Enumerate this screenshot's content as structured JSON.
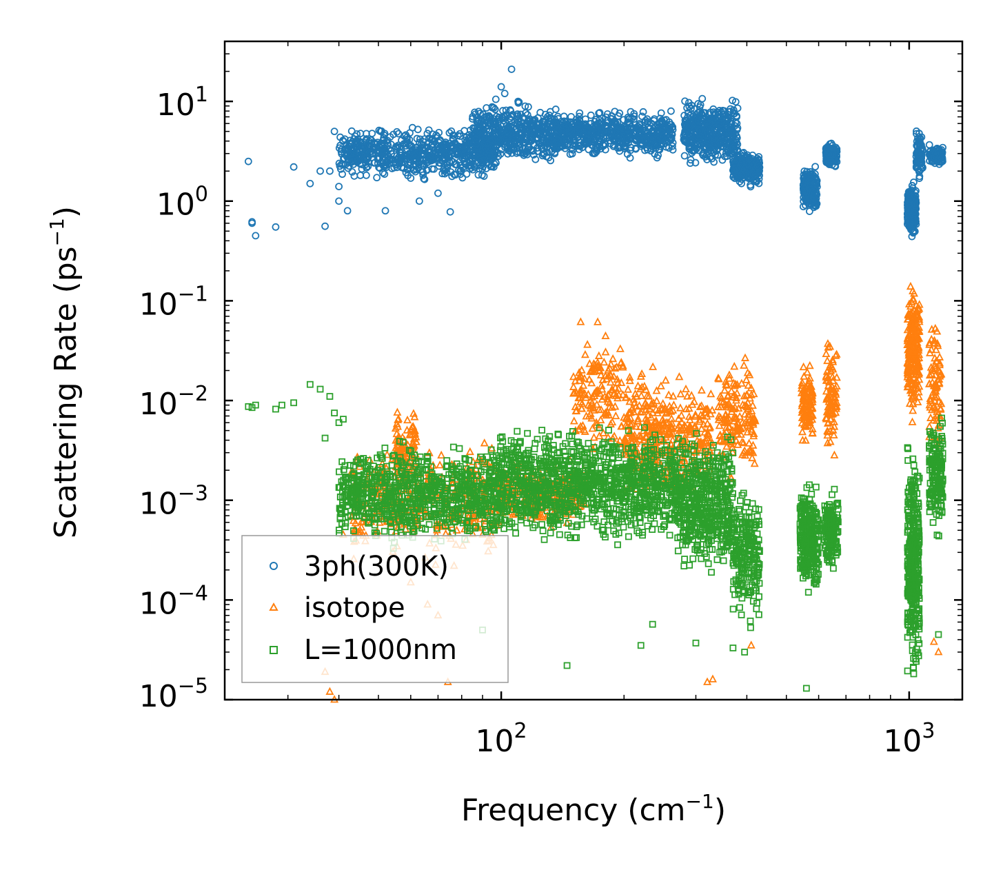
{
  "chart_data": {
    "type": "scatter",
    "xscale": "log",
    "yscale": "log",
    "xlim": [
      21,
      1350
    ],
    "ylim": [
      1e-05,
      40
    ],
    "xlabel": "Frequency (cm",
    "xlabel_sup": "−1",
    "xlabel_end": ")",
    "ylabel": "Scattering Rate (ps",
    "ylabel_sup": "−1",
    "ylabel_end": ")",
    "x_ticks": [
      {
        "base": "10",
        "exp": "2",
        "value": 100
      },
      {
        "base": "10",
        "exp": "3",
        "value": 1000
      }
    ],
    "y_ticks": [
      {
        "base": "10",
        "exp": "1",
        "value": 10
      },
      {
        "base": "10",
        "exp": "0",
        "value": 1
      },
      {
        "base": "10",
        "exp": "−1",
        "value": 0.1
      },
      {
        "base": "10",
        "exp": "−2",
        "value": 0.01
      },
      {
        "base": "10",
        "exp": "−3",
        "value": 0.001
      },
      {
        "base": "10",
        "exp": "−4",
        "value": 0.0001
      },
      {
        "base": "10",
        "exp": "−5",
        "value": 1e-05
      }
    ],
    "legend_position": "lower-left",
    "series": [
      {
        "name": "3ph(300K)",
        "marker": "circle",
        "color": "#1f77b4",
        "clusters": [
          {
            "x": [
              24,
              24.5,
              24.5,
              25,
              28,
              31,
              34,
              36,
              37,
              38,
              39,
              40,
              40,
              42,
              52,
              60,
              63,
              70,
              75
            ],
            "y": [
              2.5,
              0.62,
              0.6,
              0.45,
              0.55,
              2.2,
              1.5,
              2.0,
              0.56,
              2.0,
              5.0,
              1.0,
              1.4,
              0.8,
              0.8,
              1.7,
              1.0,
              1.2,
              0.78
            ]
          },
          {
            "x_range": [
              40,
              98
            ],
            "y_range": [
              1.5,
              6.0
            ],
            "n": 650
          },
          {
            "x_range": [
              85,
              140
            ],
            "y_range": [
              2.0,
              11.0
            ],
            "n": 500
          },
          {
            "x_range": [
              140,
              265
            ],
            "y_range": [
              2.5,
              9.0
            ],
            "n": 550
          },
          {
            "x_range": [
              280,
              380
            ],
            "y_range": [
              2.0,
              12.0
            ],
            "n": 420
          },
          {
            "x_range": [
              370,
              430
            ],
            "y_range": [
              1.3,
              3.5
            ],
            "n": 220
          },
          {
            "x_range": [
              550,
              595
            ],
            "y_range": [
              0.7,
              2.5
            ],
            "n": 180
          },
          {
            "x_range": [
              625,
              665
            ],
            "y_range": [
              2.0,
              4.0
            ],
            "n": 120
          },
          {
            "x_range": [
              990,
              1040
            ],
            "y_range": [
              0.4,
              1.7
            ],
            "n": 220
          },
          {
            "x_range": [
              1040,
              1080
            ],
            "y_range": [
              1.5,
              5.5
            ],
            "n": 90
          },
          {
            "x_range": [
              1120,
              1210
            ],
            "y_range": [
              2.2,
              3.8
            ],
            "n": 90
          },
          {
            "x": [
              97,
              100,
              102,
              106,
              110
            ],
            "y": [
              10.5,
              14.0,
              12.0,
              21.0,
              10.0
            ]
          }
        ]
      },
      {
        "name": "isotope",
        "marker": "triangle",
        "color": "#ff7f0e",
        "clusters": [
          {
            "x": [
              37,
              38,
              39,
              41
            ],
            "y": [
              1.9e-05,
              1.2e-05,
              1e-05,
              0.00045
            ]
          },
          {
            "x_range": [
              43,
              98
            ],
            "y_range": [
              0.0002,
              0.0045
            ],
            "n": 360
          },
          {
            "x_range": [
              55,
              62
            ],
            "y_range": [
              0.0012,
              0.009
            ],
            "n": 90
          },
          {
            "x_range": [
              98,
              160
            ],
            "y_range": [
              0.00045,
              0.003
            ],
            "n": 260
          },
          {
            "x_range": [
              150,
              200
            ],
            "y_range": [
              0.002,
              0.065
            ],
            "n": 160
          },
          {
            "x_range": [
              200,
              265
            ],
            "y_range": [
              0.0008,
              0.03
            ],
            "n": 260
          },
          {
            "x_range": [
              270,
              330
            ],
            "y_range": [
              0.001,
              0.02
            ],
            "n": 140
          },
          {
            "x_range": [
              340,
              420
            ],
            "y_range": [
              0.0012,
              0.04
            ],
            "n": 160
          },
          {
            "x_range": [
              545,
              580
            ],
            "y_range": [
              0.003,
              0.025
            ],
            "n": 110
          },
          {
            "x_range": [
              625,
              665
            ],
            "y_range": [
              0.002,
              0.05
            ],
            "n": 90
          },
          {
            "x_range": [
              990,
              1060
            ],
            "y_range": [
              0.005,
              0.2
            ],
            "n": 220
          },
          {
            "x_range": [
              1120,
              1200
            ],
            "y_range": [
              0.0025,
              0.08
            ],
            "n": 80
          },
          {
            "x": [
              60,
              66,
              70,
              74,
              320,
              330,
              410,
              1150,
              1180
            ],
            "y": [
              0.00015,
              9e-05,
              7e-05,
              1.5e-05,
              1.5e-05,
              1.6e-05,
              3.5e-05,
              3.8e-05,
              3e-05
            ]
          }
        ]
      },
      {
        "name": "L=1000nm",
        "marker": "square",
        "color": "#2ca02c",
        "clusters": [
          {
            "x": [
              24,
              24.5,
              25,
              28,
              29,
              31,
              34,
              36,
              37,
              38,
              39,
              40,
              41
            ],
            "y": [
              0.0087,
              0.0085,
              0.009,
              0.0082,
              0.009,
              0.0095,
              0.0145,
              0.013,
              0.0042,
              0.011,
              0.0075,
              0.006,
              0.0065
            ]
          },
          {
            "x_range": [
              40,
              98
            ],
            "y_range": [
              0.0003,
              0.0045
            ],
            "n": 800
          },
          {
            "x_range": [
              98,
              270
            ],
            "y_range": [
              0.0003,
              0.007
            ],
            "n": 1100
          },
          {
            "x_range": [
              270,
              370
            ],
            "y_range": [
              0.00015,
              0.006
            ],
            "n": 500
          },
          {
            "x_range": [
              370,
              430
            ],
            "y_range": [
              4e-05,
              0.002
            ],
            "n": 220
          },
          {
            "x_range": [
              540,
              600
            ],
            "y_range": [
              9e-05,
              0.0018
            ],
            "n": 260
          },
          {
            "x_range": [
              620,
              670
            ],
            "y_range": [
              0.00015,
              0.0015
            ],
            "n": 160
          },
          {
            "x_range": [
              990,
              1060
            ],
            "y_range": [
              1.2e-05,
              0.005
            ],
            "n": 350
          },
          {
            "x_range": [
              1120,
              1210
            ],
            "y_range": [
              0.0004,
              0.008
            ],
            "n": 160
          },
          {
            "x": [
              90,
              145,
              220,
              235,
              300,
              370,
              395,
              560,
              1180
            ],
            "y": [
              5e-05,
              2.2e-05,
              3.5e-05,
              5.7e-05,
              3.7e-05,
              3.3e-05,
              3e-05,
              1.3e-05,
              4.5e-05
            ]
          }
        ]
      }
    ]
  }
}
